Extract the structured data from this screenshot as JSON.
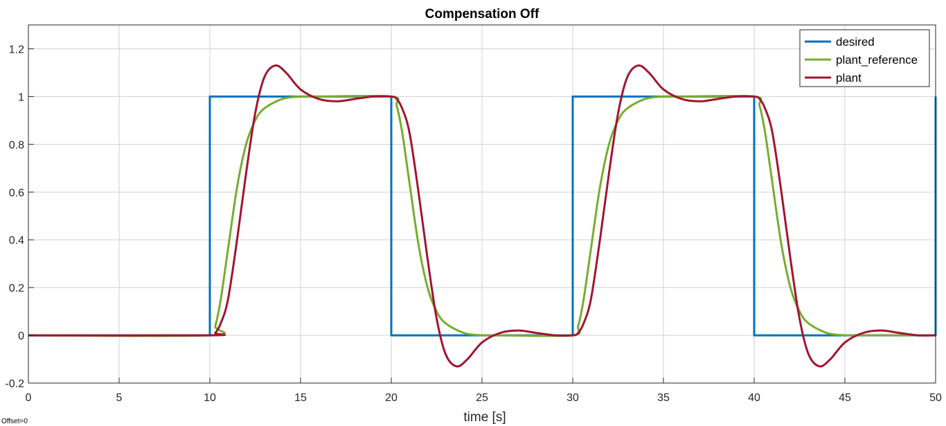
{
  "chart_data": {
    "type": "line",
    "title": "Compensation Off",
    "xlabel": "time [s]",
    "ylabel": "",
    "xlim": [
      0,
      50
    ],
    "ylim": [
      -0.2,
      1.3
    ],
    "xticks": [
      0,
      5,
      10,
      15,
      20,
      25,
      30,
      35,
      40,
      45,
      50
    ],
    "yticks": [
      -0.2,
      0,
      0.2,
      0.4,
      0.6,
      0.8,
      1,
      1.2
    ],
    "xtick_labels": [
      "0",
      "5",
      "10",
      "15",
      "20",
      "25",
      "30",
      "35",
      "40",
      "45",
      "50"
    ],
    "ytick_labels": [
      "-0.2",
      "0",
      "0.2",
      "0.4",
      "0.6",
      "0.8",
      "1",
      "1.2"
    ],
    "grid": true,
    "legend_position": "top-right",
    "annotation": "Offset=0",
    "series": [
      {
        "name": "desired",
        "color": "#0072BD",
        "x": [
          0,
          10,
          10,
          20,
          20,
          30,
          30,
          40,
          40,
          50,
          50
        ],
        "y": [
          0,
          0,
          1,
          1,
          0,
          0,
          1,
          1,
          0,
          0,
          1
        ]
      },
      {
        "name": "plant_reference",
        "color": "#77AC30",
        "x": [
          0,
          10,
          10.3,
          10.6,
          11,
          11.5,
          12,
          12.5,
          13,
          14,
          15,
          16,
          20,
          20.3,
          20.6,
          21,
          21.5,
          22,
          22.5,
          23,
          24,
          25,
          26,
          30,
          30.3,
          30.6,
          31,
          31.5,
          32,
          32.5,
          33,
          34,
          35,
          36,
          40,
          40.3,
          40.6,
          41,
          41.5,
          42,
          42.5,
          43,
          44,
          45,
          46,
          50
        ],
        "y": [
          0,
          0,
          0.04,
          0.15,
          0.36,
          0.62,
          0.8,
          0.9,
          0.95,
          0.99,
          1.0,
          1.0,
          1.0,
          0.96,
          0.85,
          0.64,
          0.38,
          0.2,
          0.1,
          0.05,
          0.01,
          0.0,
          0.0,
          0.0,
          0.04,
          0.15,
          0.36,
          0.62,
          0.8,
          0.9,
          0.95,
          0.99,
          1.0,
          1.0,
          1.0,
          0.96,
          0.85,
          0.64,
          0.38,
          0.2,
          0.1,
          0.05,
          0.01,
          0.0,
          0.0,
          0.0
        ]
      },
      {
        "name": "plant",
        "color": "#A2142F",
        "x": [
          0,
          10,
          10.3,
          10.6,
          11,
          11.5,
          12,
          12.5,
          13,
          13.6,
          14.2,
          15,
          16,
          17,
          18,
          19,
          20,
          20.3,
          20.6,
          21,
          21.5,
          22,
          22.5,
          23,
          23.6,
          24.2,
          25,
          26,
          27,
          28,
          29,
          30,
          30.3,
          30.6,
          31,
          31.5,
          32,
          32.5,
          33,
          33.6,
          34.2,
          35,
          36,
          37,
          38,
          39,
          40,
          40.3,
          40.6,
          41,
          41.5,
          42,
          42.5,
          43,
          43.6,
          44.2,
          45,
          46,
          47,
          48,
          49,
          50
        ],
        "y": [
          0,
          0,
          0.01,
          0.05,
          0.15,
          0.4,
          0.68,
          0.93,
          1.08,
          1.13,
          1.1,
          1.03,
          0.99,
          0.98,
          0.99,
          1.0,
          1.0,
          0.99,
          0.95,
          0.85,
          0.6,
          0.32,
          0.07,
          -0.08,
          -0.13,
          -0.1,
          -0.03,
          0.01,
          0.02,
          0.01,
          0.0,
          0.0,
          0.01,
          0.05,
          0.15,
          0.4,
          0.68,
          0.93,
          1.08,
          1.13,
          1.1,
          1.03,
          0.99,
          0.98,
          0.99,
          1.0,
          1.0,
          0.99,
          0.95,
          0.85,
          0.6,
          0.32,
          0.07,
          -0.08,
          -0.13,
          -0.1,
          -0.03,
          0.01,
          0.02,
          0.01,
          0.0,
          0.0
        ]
      }
    ]
  }
}
